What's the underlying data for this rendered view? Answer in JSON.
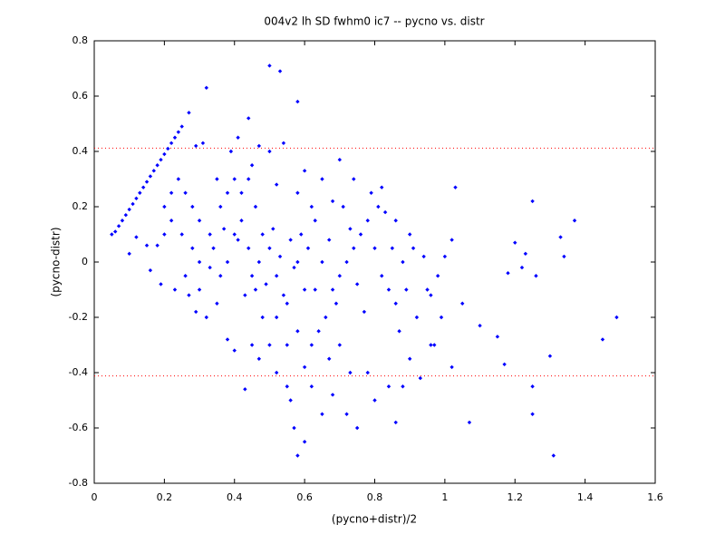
{
  "chart_data": {
    "type": "scatter",
    "title": "004v2 lh SD fwhm0 ic7 -- pycno vs. distr",
    "x_label": "(pycno+distr)/2",
    "y_label": "(pycno-distr)",
    "xlim": [
      0,
      1.6
    ],
    "ylim": [
      -0.8,
      0.8
    ],
    "xticks": [
      0,
      0.2,
      0.4,
      0.6,
      0.8,
      1,
      1.2,
      1.4,
      1.6
    ],
    "yticks": [
      -0.8,
      -0.6,
      -0.4,
      -0.2,
      0,
      0.2,
      0.4,
      0.6,
      0.8
    ],
    "color": "#0000ff",
    "reference_lines": {
      "color": "#ff0000",
      "values": [
        0.412,
        -0.412
      ]
    },
    "x": [
      0.05,
      0.06,
      0.07,
      0.08,
      0.09,
      0.1,
      0.11,
      0.12,
      0.13,
      0.14,
      0.15,
      0.16,
      0.17,
      0.18,
      0.19,
      0.2,
      0.21,
      0.22,
      0.23,
      0.24,
      0.25,
      0.5,
      0.53,
      0.58,
      0.32,
      0.27,
      0.44,
      1.31,
      0.58,
      1.49,
      1.37,
      1.45,
      1.25,
      1.25,
      1.07,
      1.03,
      1.3,
      0.2,
      0.22,
      0.25,
      0.28,
      0.3,
      0.26,
      0.3,
      0.32,
      0.35,
      0.33,
      0.36,
      0.38,
      0.4,
      0.42,
      0.44,
      0.45,
      0.46,
      0.48,
      0.5,
      0.47,
      0.52,
      0.55,
      0.56,
      0.6,
      0.62,
      0.64,
      0.66,
      0.68,
      0.7,
      0.72,
      0.74,
      0.76,
      0.78,
      0.8,
      0.82,
      0.84,
      0.86,
      0.88,
      0.9,
      0.92,
      0.95,
      0.98,
      1,
      1.02,
      0.97,
      0.93,
      0.86,
      0.8,
      0.75,
      0.73,
      0.7,
      0.58,
      0.55,
      0.52,
      0.5,
      0.48,
      0.46,
      0.44,
      0.42,
      0.4,
      0.38,
      0.36,
      0.34,
      0.3,
      0.28,
      0.26,
      0.24,
      0.22,
      0.2,
      0.18,
      0.16,
      0.19,
      0.23,
      0.27,
      0.29,
      0.33,
      0.37,
      0.41,
      0.43,
      0.47,
      0.49,
      0.51,
      0.53,
      0.54,
      0.56,
      0.57,
      0.59,
      0.6,
      0.61,
      0.63,
      0.65,
      0.67,
      0.69,
      0.71,
      0.73,
      0.75,
      0.77,
      0.79,
      0.81,
      0.83,
      0.85,
      0.87,
      0.89,
      0.91,
      0.94,
      0.96,
      0.99,
      0.35,
      0.39,
      0.31,
      0.29,
      0.5,
      0.54,
      0.58,
      0.62,
      0.65,
      0.7,
      0.6,
      0.52,
      0.45,
      0.47,
      0.41,
      0.68,
      0.82,
      0.86,
      0.74,
      0.57,
      0.6,
      0.65,
      0.62,
      0.67,
      0.45,
      0.43,
      0.4,
      0.38,
      0.55,
      0.63,
      0.58,
      0.52,
      0.68,
      0.72,
      0.78,
      0.84,
      0.9,
      1.05,
      1.02,
      1.1,
      1.15,
      1.18,
      1.2,
      1.23,
      1.22,
      1.26,
      1.33,
      1.34,
      1.17,
      1.25,
      0.88,
      0.96,
      0.15,
      0.12,
      0.1
    ],
    "values": [
      0.1,
      0.11,
      0.13,
      0.15,
      0.17,
      0.19,
      0.21,
      0.23,
      0.25,
      0.27,
      0.29,
      0.31,
      0.33,
      0.35,
      0.37,
      0.39,
      0.41,
      0.43,
      0.45,
      0.47,
      0.49,
      0.71,
      0.69,
      0.58,
      0.63,
      0.54,
      0.52,
      -0.7,
      -0.7,
      -0.2,
      0.15,
      -0.28,
      0.22,
      -0.55,
      -0.58,
      0.27,
      -0.34,
      0.2,
      0.15,
      0.1,
      0.05,
      0,
      -0.05,
      -0.1,
      -0.2,
      -0.15,
      0.1,
      0.2,
      0.25,
      0.3,
      0.15,
      0.05,
      -0.05,
      -0.1,
      -0.2,
      -0.3,
      -0.35,
      -0.4,
      -0.45,
      -0.5,
      -0.38,
      -0.3,
      -0.25,
      -0.2,
      -0.1,
      -0.05,
      0,
      0.05,
      0.1,
      0.15,
      0.05,
      -0.05,
      -0.1,
      -0.15,
      0,
      0.1,
      -0.2,
      -0.1,
      -0.05,
      0.02,
      0.08,
      -0.3,
      -0.42,
      -0.58,
      -0.5,
      -0.6,
      -0.4,
      -0.3,
      -0.25,
      -0.15,
      -0.05,
      0.05,
      0.1,
      0.2,
      0.3,
      0.25,
      0.1,
      0,
      -0.05,
      0.05,
      0.15,
      0.2,
      0.25,
      0.3,
      0.25,
      0.1,
      0.06,
      -0.03,
      -0.08,
      -0.1,
      -0.12,
      -0.18,
      -0.02,
      0.12,
      0.08,
      -0.12,
      0,
      -0.08,
      0.12,
      0.02,
      -0.12,
      0.08,
      -0.02,
      0.1,
      -0.1,
      0.05,
      0.15,
      0,
      0.08,
      -0.15,
      0.2,
      0.12,
      -0.08,
      -0.18,
      0.25,
      0.2,
      0.18,
      0.05,
      -0.25,
      -0.1,
      0.05,
      0.02,
      -0.12,
      -0.2,
      0.3,
      0.4,
      0.43,
      0.42,
      0.4,
      0.43,
      0.25,
      0.2,
      0.3,
      0.37,
      0.33,
      0.28,
      0.35,
      0.42,
      0.45,
      0.22,
      0.27,
      0.15,
      0.3,
      -0.6,
      -0.65,
      -0.55,
      -0.45,
      -0.35,
      -0.3,
      -0.46,
      -0.32,
      -0.28,
      -0.3,
      -0.1,
      0,
      -0.2,
      -0.48,
      -0.55,
      -0.4,
      -0.45,
      -0.35,
      -0.15,
      -0.38,
      -0.23,
      -0.27,
      -0.04,
      0.07,
      0.03,
      -0.02,
      -0.05,
      0.09,
      0.02,
      -0.37,
      -0.45,
      -0.45,
      -0.3,
      0.06,
      0.09,
      0.03
    ]
  }
}
